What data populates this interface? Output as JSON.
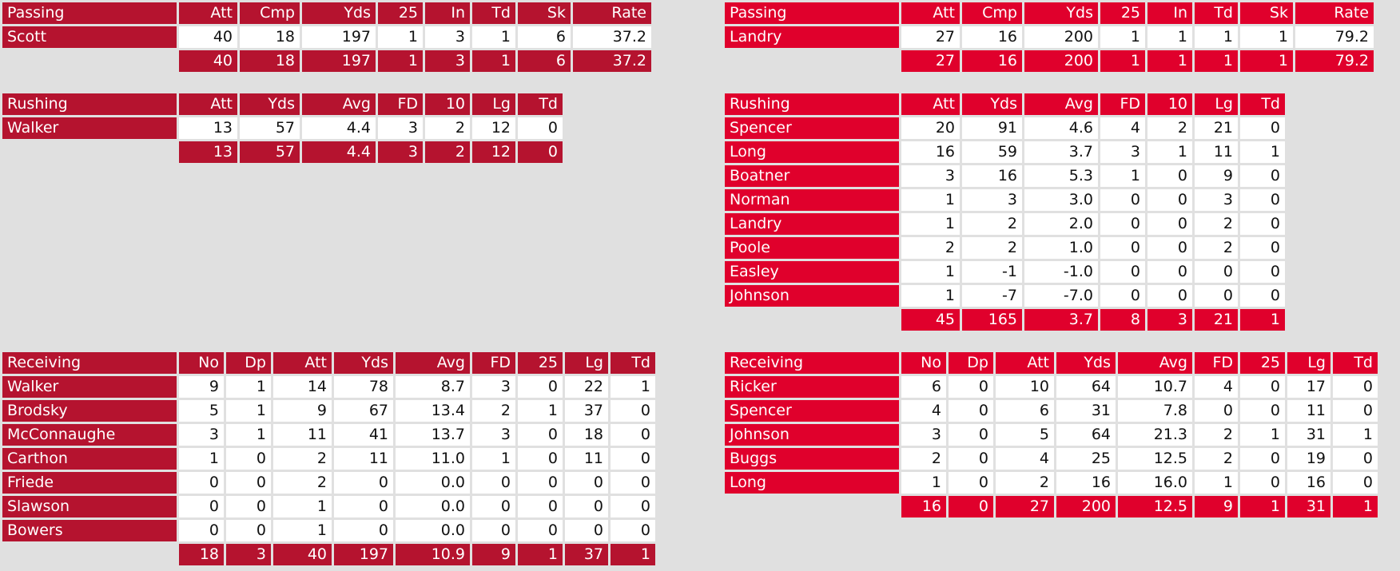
{
  "teams": [
    {
      "passing": {
        "header": [
          "Passing",
          "Att",
          "Cmp",
          "Yds",
          "25",
          "In",
          "Td",
          "Sk",
          "Rate"
        ],
        "rows": [
          [
            "Scott",
            "40",
            "18",
            "197",
            "1",
            "3",
            "1",
            "6",
            "37.2"
          ]
        ],
        "total": [
          "40",
          "18",
          "197",
          "1",
          "3",
          "1",
          "6",
          "37.2"
        ]
      },
      "rushing": {
        "header": [
          "Rushing",
          "Att",
          "Yds",
          "Avg",
          "FD",
          "10",
          "Lg",
          "Td"
        ],
        "rows": [
          [
            "Walker",
            "13",
            "57",
            "4.4",
            "3",
            "2",
            "12",
            "0"
          ]
        ],
        "total": [
          "13",
          "57",
          "4.4",
          "3",
          "2",
          "12",
          "0"
        ]
      },
      "receiving": {
        "header": [
          "Receiving",
          "No",
          "Dp",
          "Att",
          "Yds",
          "Avg",
          "FD",
          "25",
          "Lg",
          "Td"
        ],
        "rows": [
          [
            "Walker",
            "9",
            "1",
            "14",
            "78",
            "8.7",
            "3",
            "0",
            "22",
            "1"
          ],
          [
            "Brodsky",
            "5",
            "1",
            "9",
            "67",
            "13.4",
            "2",
            "1",
            "37",
            "0"
          ],
          [
            "McConnaughe",
            "3",
            "1",
            "11",
            "41",
            "13.7",
            "3",
            "0",
            "18",
            "0"
          ],
          [
            "Carthon",
            "1",
            "0",
            "2",
            "11",
            "11.0",
            "1",
            "0",
            "11",
            "0"
          ],
          [
            "Friede",
            "0",
            "0",
            "2",
            "0",
            "0.0",
            "0",
            "0",
            "0",
            "0"
          ],
          [
            "Slawson",
            "0",
            "0",
            "1",
            "0",
            "0.0",
            "0",
            "0",
            "0",
            "0"
          ],
          [
            "Bowers",
            "0",
            "0",
            "1",
            "0",
            "0.0",
            "0",
            "0",
            "0",
            "0"
          ]
        ],
        "total": [
          "18",
          "3",
          "40",
          "197",
          "10.9",
          "9",
          "1",
          "37",
          "1"
        ]
      }
    },
    {
      "passing": {
        "header": [
          "Passing",
          "Att",
          "Cmp",
          "Yds",
          "25",
          "In",
          "Td",
          "Sk",
          "Rate"
        ],
        "rows": [
          [
            "Landry",
            "27",
            "16",
            "200",
            "1",
            "1",
            "1",
            "1",
            "79.2"
          ]
        ],
        "total": [
          "27",
          "16",
          "200",
          "1",
          "1",
          "1",
          "1",
          "79.2"
        ]
      },
      "rushing": {
        "header": [
          "Rushing",
          "Att",
          "Yds",
          "Avg",
          "FD",
          "10",
          "Lg",
          "Td"
        ],
        "rows": [
          [
            "Spencer",
            "20",
            "91",
            "4.6",
            "4",
            "2",
            "21",
            "0"
          ],
          [
            "Long",
            "16",
            "59",
            "3.7",
            "3",
            "1",
            "11",
            "1"
          ],
          [
            "Boatner",
            "3",
            "16",
            "5.3",
            "1",
            "0",
            "9",
            "0"
          ],
          [
            "Norman",
            "1",
            "3",
            "3.0",
            "0",
            "0",
            "3",
            "0"
          ],
          [
            "Landry",
            "1",
            "2",
            "2.0",
            "0",
            "0",
            "2",
            "0"
          ],
          [
            "Poole",
            "2",
            "2",
            "1.0",
            "0",
            "0",
            "2",
            "0"
          ],
          [
            "Easley",
            "1",
            "-1",
            "-1.0",
            "0",
            "0",
            "0",
            "0"
          ],
          [
            "Johnson",
            "1",
            "-7",
            "-7.0",
            "0",
            "0",
            "0",
            "0"
          ]
        ],
        "total": [
          "45",
          "165",
          "3.7",
          "8",
          "3",
          "21",
          "1"
        ]
      },
      "receiving": {
        "header": [
          "Receiving",
          "No",
          "Dp",
          "Att",
          "Yds",
          "Avg",
          "FD",
          "25",
          "Lg",
          "Td"
        ],
        "rows": [
          [
            "Ricker",
            "6",
            "0",
            "10",
            "64",
            "10.7",
            "4",
            "0",
            "17",
            "0"
          ],
          [
            "Spencer",
            "4",
            "0",
            "6",
            "31",
            "7.8",
            "0",
            "0",
            "11",
            "0"
          ],
          [
            "Johnson",
            "3",
            "0",
            "5",
            "64",
            "21.3",
            "2",
            "1",
            "31",
            "1"
          ],
          [
            "Buggs",
            "2",
            "0",
            "4",
            "25",
            "12.5",
            "2",
            "0",
            "19",
            "0"
          ],
          [
            "Long",
            "1",
            "0",
            "2",
            "16",
            "16.0",
            "1",
            "0",
            "16",
            "0"
          ]
        ],
        "total": [
          "16",
          "0",
          "27",
          "200",
          "12.5",
          "9",
          "1",
          "31",
          "1"
        ]
      }
    }
  ]
}
